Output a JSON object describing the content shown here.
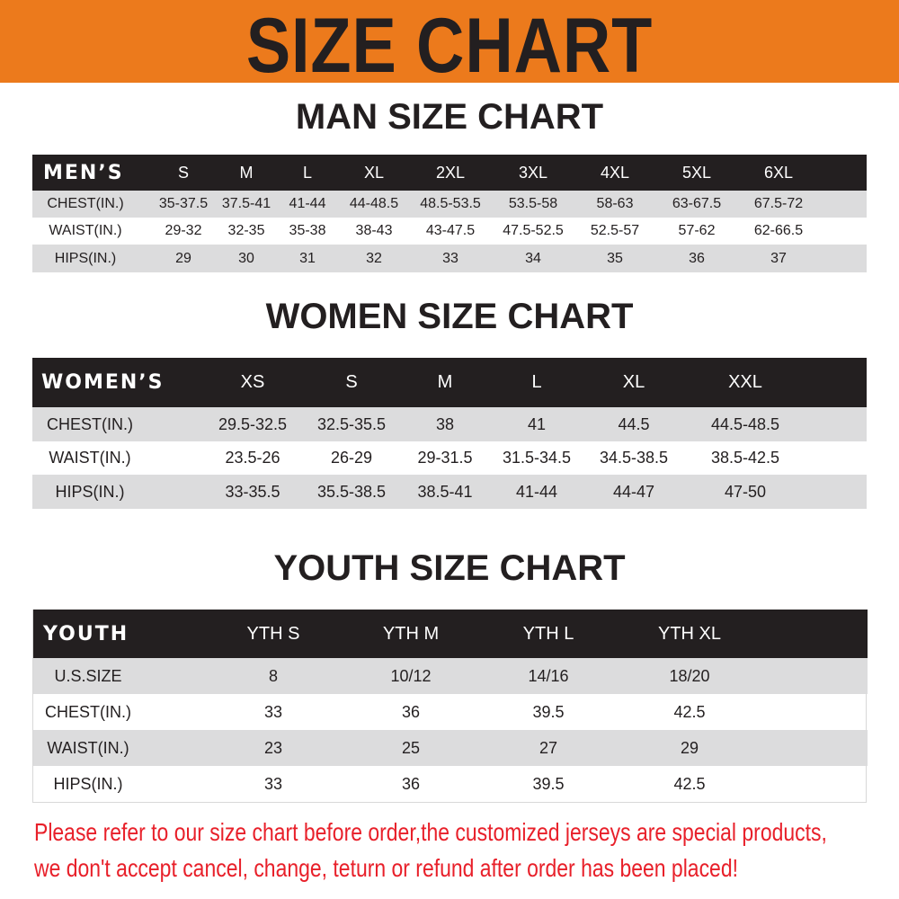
{
  "banner": {
    "title": "SIZE CHART",
    "color": "#ec7a1c"
  },
  "men": {
    "title": "MAN SIZE CHART",
    "header": [
      "MEN’S",
      "S",
      "M",
      "L",
      "XL",
      "2XL",
      "3XL",
      "4XL",
      "5XL",
      "6XL"
    ],
    "rows": [
      [
        "CHEST(IN.)",
        "35-37.5",
        "37.5-41",
        "41-44",
        "44-48.5",
        "48.5-53.5",
        "53.5-58",
        "58-63",
        "63-67.5",
        "67.5-72"
      ],
      [
        "WAIST(IN.)",
        "29-32",
        "32-35",
        "35-38",
        "38-43",
        "43-47.5",
        "47.5-52.5",
        "52.5-57",
        "57-62",
        "62-66.5"
      ],
      [
        "HIPS(IN.)",
        "29",
        "30",
        "31",
        "32",
        "33",
        "34",
        "35",
        "36",
        "37"
      ]
    ]
  },
  "women": {
    "title": "WOMEN SIZE CHART",
    "header": [
      "WOMEN’S",
      "XS",
      "S",
      "M",
      "L",
      "XL",
      "XXL"
    ],
    "rows": [
      [
        "CHEST(IN.)",
        "29.5-32.5",
        "32.5-35.5",
        "38",
        "41",
        "44.5",
        "44.5-48.5"
      ],
      [
        "WAIST(IN.)",
        "23.5-26",
        "26-29",
        "29-31.5",
        "31.5-34.5",
        "34.5-38.5",
        "38.5-42.5"
      ],
      [
        "HIPS(IN.)",
        "33-35.5",
        "35.5-38.5",
        "38.5-41",
        "41-44",
        "44-47",
        "47-50"
      ]
    ]
  },
  "youth": {
    "title": "YOUTH SIZE CHART",
    "header": [
      "YOUTH",
      "YTH S",
      "YTH M",
      "YTH L",
      "YTH XL"
    ],
    "rows": [
      [
        "U.S.SIZE",
        "8",
        "10/12",
        "14/16",
        "18/20"
      ],
      [
        "CHEST(IN.)",
        "33",
        "36",
        "39.5",
        "42.5"
      ],
      [
        "WAIST(IN.)",
        "23",
        "25",
        "27",
        "29"
      ],
      [
        "HIPS(IN.)",
        "33",
        "36",
        "39.5",
        "42.5"
      ]
    ]
  },
  "notice": {
    "line1": "Please refer to our size chart before order,the customized jerseys are special products,",
    "line2": "we don't accept cancel, change, teturn or refund after order has been placed!",
    "color": "#e8202a"
  }
}
